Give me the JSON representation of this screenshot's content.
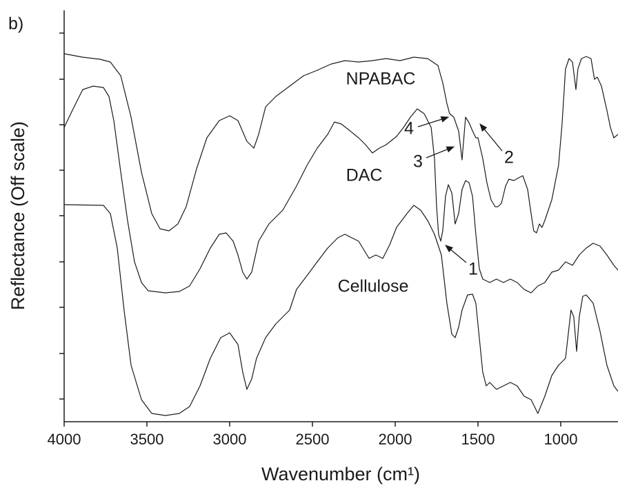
{
  "chart_data": {
    "type": "line",
    "panel_label": "b)",
    "x_label": "Wavenumber (cm¹)",
    "y_label": "Reflectance (Off scale)",
    "xlim": [
      4000,
      654
    ],
    "xticks": [
      4000,
      3500,
      3000,
      2500,
      2000,
      1500,
      1000
    ],
    "ylim": [
      0,
      597
    ],
    "yticks": [
      33,
      99,
      166,
      232,
      299,
      365,
      431,
      497,
      564
    ],
    "annotations": [
      "NPABAC",
      "DAC",
      "Cellulose",
      "1",
      "2",
      "3",
      "4"
    ],
    "series": [
      {
        "name": "NPABAC",
        "color": "#1a1a1a",
        "x": [
          4000,
          3888,
          3783,
          3721,
          3658,
          3596,
          3533,
          3471,
          3421,
          3367,
          3313,
          3263,
          3200,
          3138,
          3063,
          3000,
          2950,
          2896,
          2854,
          2825,
          2783,
          2721,
          2638,
          2554,
          2471,
          2388,
          2304,
          2221,
          2138,
          2054,
          1971,
          1888,
          1804,
          1742,
          1713,
          1688,
          1671,
          1646,
          1617,
          1596,
          1575,
          1554,
          1533,
          1513,
          1500,
          1471,
          1446,
          1421,
          1396,
          1379,
          1358,
          1333,
          1313,
          1283,
          1254,
          1229,
          1200,
          1179,
          1163,
          1146,
          1129,
          1113,
          1096,
          1054,
          1013,
          992,
          971,
          950,
          929,
          908,
          896,
          875,
          846,
          817,
          796,
          779,
          754,
          721,
          700,
          679,
          654
        ],
        "values": [
          534,
          529,
          526,
          522,
          502,
          442,
          362,
          302,
          280,
          277,
          287,
          312,
          367,
          412,
          437,
          444,
          437,
          407,
          397,
          417,
          457,
          472,
          487,
          502,
          510,
          519,
          524,
          522,
          524,
          527,
          524,
          529,
          527,
          517,
          492,
          462,
          447,
          442,
          422,
          380,
          442,
          434,
          422,
          412,
          412,
          382,
          347,
          322,
          312,
          312,
          317,
          342,
          352,
          350,
          354,
          357,
          337,
          302,
          277,
          274,
          287,
          282,
          292,
          322,
          372,
          432,
          512,
          527,
          522,
          482,
          512,
          527,
          530,
          527,
          497,
          500,
          487,
          452,
          427,
          412,
          417
        ]
      },
      {
        "name": "DAC",
        "color": "#1a1a1a",
        "x": [
          4000,
          3950,
          3888,
          3825,
          3763,
          3729,
          3700,
          3658,
          3617,
          3575,
          3533,
          3492,
          3388,
          3304,
          3242,
          3179,
          3117,
          3063,
          3021,
          2979,
          2950,
          2921,
          2896,
          2867,
          2825,
          2763,
          2679,
          2596,
          2533,
          2471,
          2408,
          2367,
          2325,
          2283,
          2221,
          2179,
          2138,
          2096,
          2054,
          1992,
          1950,
          1908,
          1867,
          1825,
          1783,
          1763,
          1750,
          1738,
          1725,
          1713,
          1696,
          1679,
          1658,
          1638,
          1617,
          1596,
          1575,
          1554,
          1533,
          1513,
          1492,
          1471,
          1429,
          1388,
          1346,
          1304,
          1263,
          1221,
          1179,
          1138,
          1096,
          1054,
          1013,
          971,
          929,
          888,
          846,
          804,
          763,
          721,
          679,
          654
        ],
        "values": [
          427,
          452,
          482,
          487,
          485,
          472,
          437,
          362,
          292,
          232,
          202,
          190,
          187,
          189,
          197,
          222,
          252,
          272,
          274,
          262,
          242,
          217,
          207,
          217,
          262,
          287,
          307,
          342,
          372,
          397,
          417,
          435,
          432,
          424,
          412,
          402,
          390,
          397,
          402,
          414,
          427,
          442,
          454,
          447,
          427,
          382,
          312,
          272,
          262,
          277,
          327,
          344,
          332,
          287,
          302,
          337,
          350,
          347,
          327,
          272,
          222,
          207,
          202,
          207,
          202,
          207,
          202,
          192,
          187,
          197,
          202,
          217,
          220,
          232,
          227,
          242,
          252,
          259,
          255,
          242,
          227,
          220
        ]
      },
      {
        "name": "Cellulose",
        "color": "#1a1a1a",
        "x": [
          4000,
          3763,
          3721,
          3679,
          3638,
          3596,
          3533,
          3471,
          3388,
          3304,
          3242,
          3179,
          3117,
          3054,
          3000,
          2950,
          2921,
          2896,
          2867,
          2838,
          2783,
          2721,
          2638,
          2596,
          2533,
          2471,
          2408,
          2346,
          2304,
          2263,
          2221,
          2158,
          2117,
          2075,
          2033,
          1992,
          1929,
          1888,
          1846,
          1804,
          1763,
          1721,
          1688,
          1658,
          1638,
          1617,
          1596,
          1563,
          1533,
          1513,
          1492,
          1471,
          1450,
          1429,
          1388,
          1346,
          1304,
          1263,
          1221,
          1179,
          1138,
          1096,
          1054,
          1013,
          971,
          938,
          921,
          904,
          888,
          867,
          846,
          804,
          763,
          721,
          679,
          654
        ],
        "values": [
          315,
          314,
          302,
          252,
          162,
          82,
          32,
          12,
          9,
          12,
          22,
          52,
          92,
          122,
          129,
          112,
          72,
          47,
          62,
          92,
          122,
          142,
          162,
          192,
          212,
          232,
          252,
          267,
          272,
          267,
          262,
          237,
          242,
          237,
          257,
          282,
          302,
          314,
          307,
          292,
          272,
          242,
          172,
          127,
          122,
          137,
          162,
          184,
          185,
          172,
          122,
          72,
          52,
          57,
          47,
          52,
          57,
          52,
          37,
          32,
          12,
          37,
          67,
          82,
          92,
          162,
          152,
          102,
          152,
          182,
          184,
          172,
          132,
          82,
          52,
          44
        ]
      }
    ]
  }
}
